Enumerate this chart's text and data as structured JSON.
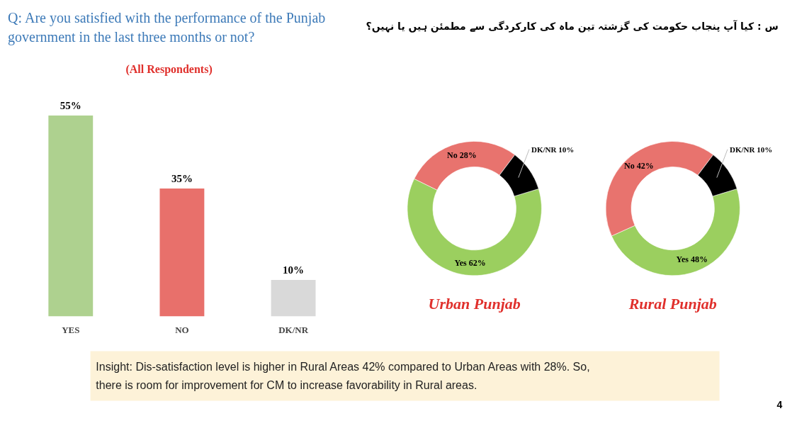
{
  "chart_data": [
    {
      "type": "bar",
      "title": "Q: Are you satisfied with the performance of the Punjab government in the last three months or not?",
      "subtitle": "(All Respondents)",
      "categories": [
        "YES",
        "NO",
        "DK/NR"
      ],
      "values": [
        55,
        35,
        10
      ],
      "colors": [
        "#aed18f",
        "#e8706b",
        "#d9d9d9"
      ],
      "value_labels": [
        "55%",
        "35%",
        "10%"
      ],
      "tick_labels": "x",
      "grid": false,
      "annotations": [
        "س : کیا آپ پنجاب حکومت کی گزشتہ تین ماہ کی کارکردگی سے مطمئن ہیں یا نہیں؟",
        "Insight: Dis-satisfaction level is higher in Rural Areas 42% compared to Urban Areas with 28%. So, there is room for improvement for CM to increase favorability in Rural areas.",
        "4"
      ]
    },
    {
      "type": "donut",
      "title": "Urban Punjab",
      "categories": [
        "Yes",
        "No",
        "DK/NR"
      ],
      "values": [
        62,
        28,
        10
      ],
      "colors": [
        "#9bcf5f",
        "#e8736e",
        "#000000"
      ],
      "value_labels": [
        "62%",
        "28%",
        "10%"
      ]
    },
    {
      "type": "donut",
      "title": "Rural Punjab",
      "categories": [
        "Yes",
        "No",
        "DK/NR"
      ],
      "values": [
        48,
        42,
        10
      ],
      "colors": [
        "#9bcf5f",
        "#e8736e",
        "#000000"
      ],
      "value_labels": [
        "48%",
        "42%",
        "10%"
      ]
    }
  ]
}
